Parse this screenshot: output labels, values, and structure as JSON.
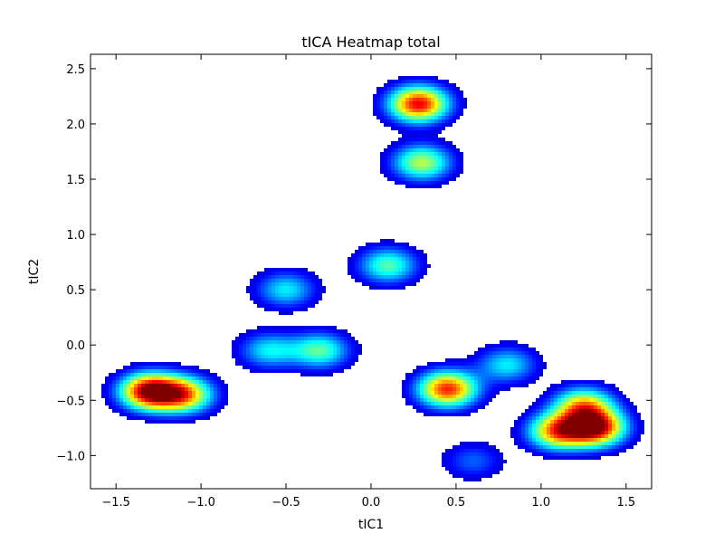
{
  "chart_data": {
    "type": "heatmap",
    "title": "tICA Heatmap total",
    "xlabel": "tIC1",
    "ylabel": "tIC2",
    "xlim": [
      -1.65,
      1.65
    ],
    "ylim": [
      -1.3,
      2.63
    ],
    "x_ticks": [
      -1.5,
      -1.0,
      -0.5,
      0.0,
      0.5,
      1.0,
      1.5
    ],
    "x_tick_labels": [
      "−1.5",
      "−1.0",
      "−0.5",
      "0.0",
      "0.5",
      "1.0",
      "1.5"
    ],
    "y_ticks": [
      -1.0,
      -0.5,
      0.0,
      0.5,
      1.0,
      1.5,
      2.0,
      2.5
    ],
    "y_tick_labels": [
      "−1.0",
      "−0.5",
      "0.0",
      "0.5",
      "1.0",
      "1.5",
      "2.0",
      "2.5"
    ],
    "colormap": "jet",
    "grid": false,
    "density_peaks": [
      {
        "x": 0.28,
        "y": 2.18,
        "intensity": 0.9
      },
      {
        "x": 0.3,
        "y": 1.65,
        "intensity": 0.55
      },
      {
        "x": 0.1,
        "y": 0.72,
        "intensity": 0.45
      },
      {
        "x": -0.5,
        "y": 0.5,
        "intensity": 0.35
      },
      {
        "x": -0.3,
        "y": -0.05,
        "intensity": 0.45
      },
      {
        "x": -0.6,
        "y": -0.05,
        "intensity": 0.35
      },
      {
        "x": -1.3,
        "y": -0.42,
        "intensity": 1.0
      },
      {
        "x": -1.1,
        "y": -0.45,
        "intensity": 0.7
      },
      {
        "x": 0.45,
        "y": -0.4,
        "intensity": 0.85
      },
      {
        "x": 0.8,
        "y": -0.18,
        "intensity": 0.35
      },
      {
        "x": 1.1,
        "y": -0.78,
        "intensity": 0.75
      },
      {
        "x": 1.32,
        "y": -0.75,
        "intensity": 0.95
      },
      {
        "x": 1.25,
        "y": -0.55,
        "intensity": 0.65
      },
      {
        "x": 0.6,
        "y": -1.05,
        "intensity": 0.2
      }
    ]
  }
}
